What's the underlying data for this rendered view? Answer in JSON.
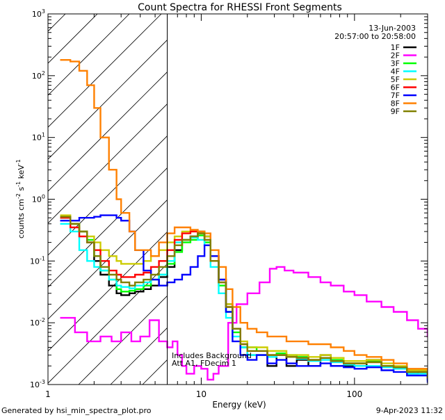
{
  "chart_data": {
    "type": "line",
    "title": "Count Spectra for RHESSI Front Segments",
    "xlabel": "Energy (keV)",
    "ylabel": "counts cm^-2 s^-1 keV^-1",
    "ylabel_parts": {
      "base": "counts cm",
      "exp1": "-2",
      "mid": " s",
      "exp2": "-1",
      "mid2": " keV",
      "exp3": "-1"
    },
    "xscale": "log",
    "yscale": "log",
    "xlim": [
      1,
      300
    ],
    "ylim": [
      0.001,
      1000
    ],
    "x_ticks": [
      {
        "value": 1,
        "label": "1"
      },
      {
        "value": 10,
        "label": "10"
      },
      {
        "value": 100,
        "label": "100"
      }
    ],
    "y_ticks": [
      {
        "value": 0.001,
        "label": "10",
        "exp": "-3"
      },
      {
        "value": 0.01,
        "label": "10",
        "exp": "-2"
      },
      {
        "value": 0.1,
        "label": "10",
        "exp": "-1"
      },
      {
        "value": 1,
        "label": "10",
        "exp": "0"
      },
      {
        "value": 10,
        "label": "10",
        "exp": "1"
      },
      {
        "value": 100,
        "label": "10",
        "exp": "2"
      },
      {
        "value": 1000,
        "label": "10",
        "exp": "3"
      }
    ],
    "date": "13-Jun-2003",
    "time_range": "20:57:00 to 20:58:00",
    "excluded_region_below_keV": 6,
    "annotations": [
      "Includes Background",
      "Att A1, FDecim 1"
    ],
    "legend_position": "top-right",
    "series": [
      {
        "name": "1F",
        "color": "#000000",
        "energy": [
          1.2,
          1.4,
          1.6,
          1.8,
          2.0,
          2.2,
          2.5,
          2.8,
          3.0,
          3.4,
          3.7,
          4.2,
          4.7,
          5.3,
          6.0,
          6.7,
          7.5,
          8.5,
          9.5,
          10.5,
          11.5,
          13,
          14.5,
          16,
          18,
          20,
          23,
          27,
          31,
          36,
          42,
          50,
          60,
          70,
          85,
          100,
          120,
          150,
          180,
          220,
          260,
          300
        ],
        "values": [
          0.5,
          0.4,
          0.3,
          0.2,
          0.1,
          0.06,
          0.04,
          0.03,
          0.028,
          0.03,
          0.032,
          0.035,
          0.04,
          0.055,
          0.08,
          0.15,
          0.22,
          0.25,
          0.3,
          0.25,
          0.12,
          0.05,
          0.02,
          0.008,
          0.004,
          0.003,
          0.003,
          0.002,
          0.003,
          0.002,
          0.0025,
          0.002,
          0.003,
          0.002,
          0.002,
          0.002,
          0.0025,
          0.002,
          0.0018,
          0.0015,
          0.0016,
          0.0012
        ]
      },
      {
        "name": "2F",
        "color": "#ff00ff",
        "energy": [
          1.2,
          1.5,
          1.8,
          2.2,
          2.6,
          3.0,
          3.5,
          4.0,
          4.6,
          5.3,
          6.0,
          6.5,
          7.0,
          7.5,
          8.0,
          9.0,
          10,
          11,
          12,
          13,
          15,
          17,
          20,
          24,
          28,
          31,
          35,
          40,
          50,
          60,
          70,
          85,
          100,
          120,
          150,
          180,
          220,
          260,
          300
        ],
        "values": [
          0.012,
          0.007,
          0.005,
          0.006,
          0.005,
          0.007,
          0.005,
          0.006,
          0.011,
          0.005,
          0.004,
          0.005,
          0.003,
          0.002,
          0.0015,
          0.002,
          0.0018,
          0.0012,
          0.0015,
          0.002,
          0.01,
          0.02,
          0.03,
          0.045,
          0.075,
          0.08,
          0.07,
          0.065,
          0.055,
          0.045,
          0.04,
          0.032,
          0.028,
          0.022,
          0.018,
          0.015,
          0.011,
          0.008,
          0.006
        ]
      },
      {
        "name": "3F",
        "color": "#00ff00",
        "energy": [
          1.2,
          1.4,
          1.6,
          1.8,
          2.0,
          2.2,
          2.5,
          2.8,
          3.0,
          3.4,
          3.7,
          4.2,
          4.7,
          5.3,
          6.0,
          6.7,
          7.5,
          8.5,
          9.5,
          10.5,
          11.5,
          13,
          14.5,
          16,
          18,
          20,
          23,
          27,
          31,
          36,
          42,
          50,
          60,
          70,
          85,
          100,
          120,
          150,
          180,
          220,
          260,
          300
        ],
        "values": [
          0.5,
          0.4,
          0.3,
          0.22,
          0.12,
          0.07,
          0.05,
          0.035,
          0.032,
          0.033,
          0.035,
          0.04,
          0.05,
          0.06,
          0.09,
          0.14,
          0.2,
          0.22,
          0.26,
          0.2,
          0.1,
          0.04,
          0.015,
          0.007,
          0.004,
          0.004,
          0.0035,
          0.003,
          0.0032,
          0.003,
          0.0028,
          0.0025,
          0.0027,
          0.0025,
          0.0022,
          0.0022,
          0.0024,
          0.002,
          0.0019,
          0.0016,
          0.0016,
          0.0013
        ]
      },
      {
        "name": "4F",
        "color": "#00ffff",
        "energy": [
          1.2,
          1.4,
          1.6,
          1.8,
          2.0,
          2.2,
          2.5,
          2.8,
          3.0,
          3.4,
          3.7,
          4.2,
          4.7,
          5.3,
          6.0,
          6.7,
          7.5,
          8.5,
          9.5,
          10.5,
          11.5,
          13,
          14.5,
          16,
          18,
          20,
          23,
          27,
          31,
          36,
          42,
          50,
          60,
          70,
          85,
          100,
          120,
          150,
          180,
          220,
          260,
          300
        ],
        "values": [
          0.4,
          0.3,
          0.15,
          0.1,
          0.08,
          0.07,
          0.05,
          0.04,
          0.038,
          0.036,
          0.04,
          0.045,
          0.05,
          0.06,
          0.1,
          0.2,
          0.22,
          0.24,
          0.22,
          0.18,
          0.08,
          0.03,
          0.012,
          0.006,
          0.004,
          0.003,
          0.003,
          0.0028,
          0.003,
          0.0028,
          0.0026,
          0.0024,
          0.0025,
          0.0023,
          0.0021,
          0.002,
          0.002,
          0.0019,
          0.0018,
          0.0015,
          0.0015,
          0.0012
        ]
      },
      {
        "name": "5F",
        "color": "#cccc00",
        "energy": [
          1.2,
          1.4,
          1.6,
          1.8,
          2.0,
          2.2,
          2.5,
          2.8,
          3.0,
          3.4,
          3.7,
          4.2,
          4.7,
          5.3,
          6.0,
          6.7,
          7.5,
          8.5,
          9.5,
          10.5,
          11.5,
          13,
          14.5,
          16,
          18,
          20,
          23,
          27,
          31,
          36,
          42,
          50,
          60,
          70,
          85,
          100,
          120,
          150,
          180,
          220,
          260,
          300
        ],
        "values": [
          0.55,
          0.4,
          0.3,
          0.25,
          0.2,
          0.15,
          0.12,
          0.1,
          0.09,
          0.09,
          0.09,
          0.1,
          0.12,
          0.15,
          0.2,
          0.25,
          0.3,
          0.3,
          0.3,
          0.25,
          0.12,
          0.05,
          0.02,
          0.008,
          0.005,
          0.004,
          0.004,
          0.0035,
          0.0035,
          0.003,
          0.003,
          0.0028,
          0.003,
          0.0027,
          0.0024,
          0.0024,
          0.0025,
          0.0022,
          0.002,
          0.0017,
          0.0017,
          0.0013
        ]
      },
      {
        "name": "6F",
        "color": "#ff0000",
        "energy": [
          1.2,
          1.4,
          1.6,
          1.8,
          2.0,
          2.2,
          2.5,
          2.8,
          3.0,
          3.4,
          3.7,
          4.2,
          4.7,
          5.3,
          6.0,
          6.7,
          7.5,
          8.5,
          9.5,
          10.5,
          11.5,
          13,
          14.5,
          16,
          18,
          20,
          23,
          27,
          31,
          36,
          42,
          50,
          60,
          70,
          85,
          100,
          120,
          150,
          180,
          220,
          260,
          300
        ],
        "values": [
          0.5,
          0.35,
          0.25,
          0.2,
          0.15,
          0.1,
          0.07,
          0.06,
          0.055,
          0.055,
          0.06,
          0.065,
          0.08,
          0.1,
          0.15,
          0.22,
          0.28,
          0.3,
          0.28,
          0.22,
          0.1,
          0.045,
          0.018,
          0.008,
          0.0045,
          0.0035,
          0.0035,
          0.003,
          0.003,
          0.0028,
          0.0027,
          0.0025,
          0.0027,
          0.0024,
          0.0022,
          0.0022,
          0.0023,
          0.002,
          0.0019,
          0.0016,
          0.0016,
          0.0013
        ]
      },
      {
        "name": "7F",
        "color": "#0000ff",
        "energy": [
          1.2,
          1.4,
          1.6,
          1.8,
          2.0,
          2.2,
          2.5,
          2.8,
          3.0,
          3.4,
          3.7,
          4.2,
          4.7,
          5.3,
          6.0,
          6.7,
          7.5,
          8.5,
          9.5,
          10.5,
          11.5,
          13,
          14.5,
          16,
          18,
          20,
          23,
          27,
          31,
          36,
          42,
          50,
          60,
          70,
          85,
          100,
          120,
          150,
          180,
          220,
          260,
          300
        ],
        "values": [
          0.45,
          0.45,
          0.5,
          0.5,
          0.52,
          0.55,
          0.55,
          0.5,
          0.45,
          0.3,
          0.15,
          0.07,
          0.05,
          0.04,
          0.045,
          0.05,
          0.06,
          0.08,
          0.12,
          0.18,
          0.12,
          0.05,
          0.015,
          0.005,
          0.003,
          0.0025,
          0.003,
          0.0022,
          0.0025,
          0.0022,
          0.002,
          0.002,
          0.0022,
          0.002,
          0.0019,
          0.0018,
          0.0019,
          0.0017,
          0.0016,
          0.0014,
          0.0014,
          0.0011
        ]
      },
      {
        "name": "8F",
        "color": "#ff8000",
        "energy": [
          1.2,
          1.4,
          1.6,
          1.8,
          2.0,
          2.2,
          2.5,
          2.8,
          3.0,
          3.4,
          3.7,
          4.2,
          4.7,
          5.3,
          6.0,
          6.7,
          7.5,
          8.5,
          9.5,
          10.5,
          11.5,
          13,
          14.5,
          16,
          18,
          20,
          23,
          27,
          31,
          36,
          42,
          50,
          60,
          70,
          85,
          100,
          120,
          150,
          180,
          220,
          260,
          300
        ],
        "values": [
          180,
          170,
          120,
          70,
          30,
          10,
          3,
          1,
          0.6,
          0.3,
          0.15,
          0.15,
          0.12,
          0.2,
          0.28,
          0.35,
          0.35,
          0.32,
          0.3,
          0.28,
          0.15,
          0.08,
          0.035,
          0.018,
          0.01,
          0.008,
          0.007,
          0.006,
          0.006,
          0.005,
          0.005,
          0.0045,
          0.0045,
          0.004,
          0.0035,
          0.003,
          0.0028,
          0.0025,
          0.0022,
          0.0018,
          0.0018,
          0.0015
        ]
      },
      {
        "name": "9F",
        "color": "#808000",
        "energy": [
          1.2,
          1.4,
          1.6,
          1.8,
          2.0,
          2.2,
          2.5,
          2.8,
          3.0,
          3.4,
          3.7,
          4.2,
          4.7,
          5.3,
          6.0,
          6.7,
          7.5,
          8.5,
          9.5,
          10.5,
          11.5,
          13,
          14.5,
          16,
          18,
          20,
          23,
          27,
          31,
          36,
          42,
          50,
          60,
          70,
          85,
          100,
          120,
          150,
          180,
          220,
          260,
          300
        ],
        "values": [
          0.52,
          0.4,
          0.3,
          0.2,
          0.12,
          0.08,
          0.06,
          0.05,
          0.045,
          0.04,
          0.045,
          0.05,
          0.06,
          0.08,
          0.12,
          0.18,
          0.22,
          0.25,
          0.28,
          0.22,
          0.1,
          0.045,
          0.018,
          0.008,
          0.0045,
          0.0035,
          0.0035,
          0.003,
          0.003,
          0.0028,
          0.0027,
          0.0025,
          0.0027,
          0.0024,
          0.0022,
          0.0022,
          0.0023,
          0.002,
          0.0019,
          0.0016,
          0.0016,
          0.0013
        ]
      }
    ]
  },
  "footer": {
    "generated_by": "Generated by hsi_min_spectra_plot.pro",
    "timestamp": "9-Apr-2023 11:32"
  }
}
